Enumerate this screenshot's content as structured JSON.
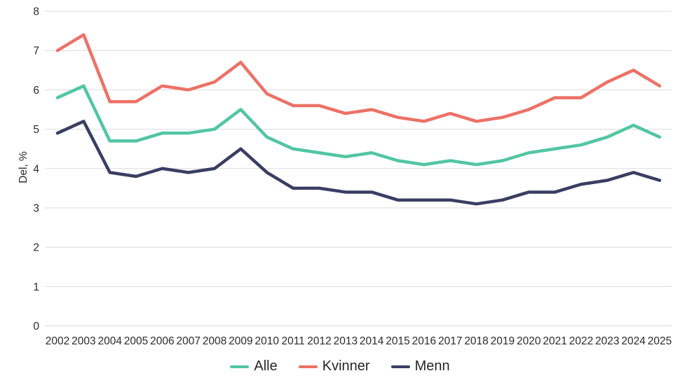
{
  "chart_data": {
    "type": "line",
    "title": "",
    "xlabel": "",
    "ylabel": "Del, %",
    "ylim": [
      0,
      8
    ],
    "yticks": [
      0,
      1,
      2,
      3,
      4,
      5,
      6,
      7,
      8
    ],
    "grid": "horizontal",
    "legend_position": "bottom-center",
    "categories": [
      "2002",
      "2003",
      "2004",
      "2005",
      "2006",
      "2007",
      "2008",
      "2009",
      "2010",
      "2011",
      "2012",
      "2013",
      "2014",
      "2015",
      "2016",
      "2017",
      "2018",
      "2019",
      "2020",
      "2021",
      "2022",
      "2023",
      "2024",
      "2025"
    ],
    "series": [
      {
        "name": "Alle",
        "color": "#51C6A3",
        "values": [
          5.8,
          6.1,
          4.7,
          4.7,
          4.9,
          4.9,
          5.0,
          5.5,
          4.8,
          4.5,
          4.4,
          4.3,
          4.4,
          4.2,
          4.1,
          4.2,
          4.1,
          4.2,
          4.4,
          4.5,
          4.6,
          4.8,
          5.1,
          4.8
        ]
      },
      {
        "name": "Kvinner",
        "color": "#ED7167",
        "values": [
          7.0,
          7.4,
          5.7,
          5.7,
          6.1,
          6.0,
          6.2,
          6.7,
          5.9,
          5.6,
          5.6,
          5.4,
          5.5,
          5.3,
          5.2,
          5.4,
          5.2,
          5.3,
          5.5,
          5.8,
          5.8,
          6.2,
          6.5,
          6.1
        ]
      },
      {
        "name": "Menn",
        "color": "#3A3E63",
        "values": [
          4.9,
          5.2,
          3.9,
          3.8,
          4.0,
          3.9,
          4.0,
          4.5,
          3.9,
          3.5,
          3.5,
          3.4,
          3.4,
          3.2,
          3.2,
          3.2,
          3.1,
          3.2,
          3.4,
          3.4,
          3.6,
          3.7,
          3.9,
          3.7
        ]
      }
    ]
  },
  "colors": {
    "gridline": "#DBDBDB",
    "axis_text": "#2b2b2b",
    "legend_text": "#262626"
  }
}
